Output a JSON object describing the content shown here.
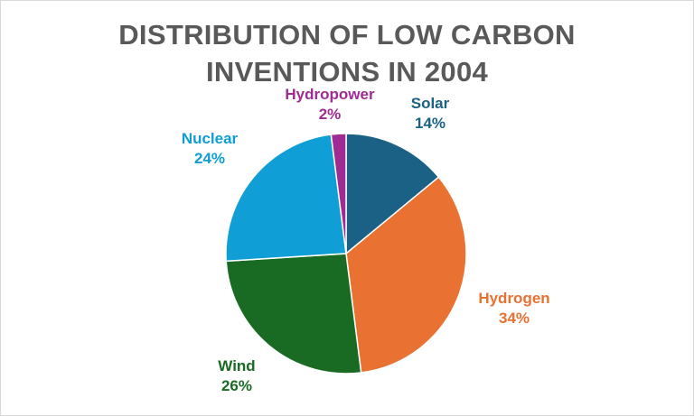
{
  "chart_data": {
    "type": "pie",
    "title_lines": [
      "DISTRIBUTION OF LOW CARBON",
      "INVENTIONS IN 2004"
    ],
    "slices": [
      {
        "label": "Solar",
        "value": 14,
        "value_text": "14%",
        "color": "#1a6185"
      },
      {
        "label": "Hydrogen",
        "value": 34,
        "value_text": "34%",
        "color": "#e97132"
      },
      {
        "label": "Wind",
        "value": 26,
        "value_text": "26%",
        "color": "#196b24"
      },
      {
        "label": "Nuclear",
        "value": 24,
        "value_text": "24%",
        "color": "#0f9ed5"
      },
      {
        "label": "Hydropower",
        "value": 2,
        "value_text": "2%",
        "color": "#a02b93"
      }
    ],
    "start_angle_deg": 0,
    "direction": "clockwise",
    "legend": "none",
    "data_labels": "outside"
  },
  "colors": {
    "title": "#595959",
    "border": "#d9d9d9",
    "background": "#ffffff"
  }
}
